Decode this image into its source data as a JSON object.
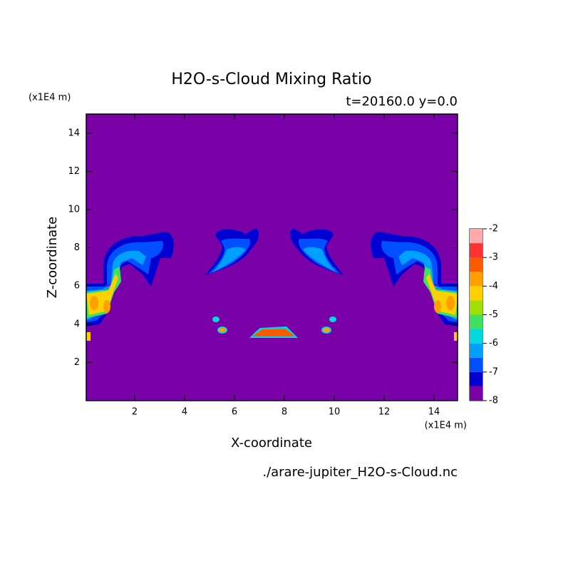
{
  "chart_data": {
    "type": "contour",
    "title": "H2O-s-Cloud Mixing Ratio",
    "subtitle": "t=20160.0 y=0.0",
    "x_label": "X-coordinate",
    "x_unit": "(x1E4 m)",
    "y_label": "Z-coordinate",
    "y_unit": "(x1E4 m)",
    "footer": "./arare-jupiter_H2O-s-Cloud.nc",
    "xlim": [
      0,
      15
    ],
    "xticks": [
      2,
      4,
      6,
      8,
      10,
      12,
      14
    ],
    "ylim": [
      0,
      15
    ],
    "yticks": [
      2,
      4,
      6,
      8,
      10,
      12,
      14
    ],
    "clim": [
      -8,
      -2
    ],
    "cticks": [
      -8,
      -7,
      -6,
      -5,
      -4,
      -3,
      -2
    ],
    "colors": [
      "#7a00a8",
      "#0000d0",
      "#0050ff",
      "#00a0ff",
      "#00d8e0",
      "#40e060",
      "#a0e000",
      "#ffd000",
      "#ffa000",
      "#ff5a00",
      "#ff3030",
      "#ffaaaa"
    ],
    "background": "#7a00a8"
  }
}
